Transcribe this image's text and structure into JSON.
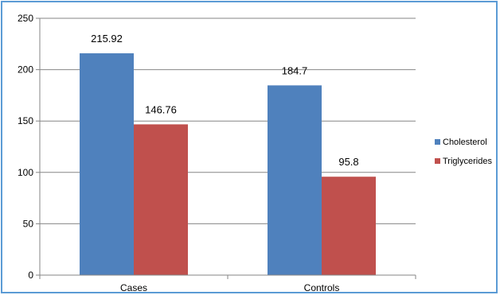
{
  "chart_data": {
    "type": "bar",
    "categories": [
      "Cases",
      "Controls"
    ],
    "series": [
      {
        "name": "Cholesterol",
        "values": [
          215.92,
          184.7
        ],
        "color": "#4f81bd"
      },
      {
        "name": "Triglycerides",
        "values": [
          146.76,
          95.8
        ],
        "color": "#c0504d"
      }
    ],
    "data_labels": [
      [
        "215.92",
        "184.7"
      ],
      [
        "146.76",
        "95.8"
      ]
    ],
    "yticks": [
      "0",
      "50",
      "100",
      "150",
      "200",
      "250"
    ],
    "ylim": [
      0,
      250
    ],
    "grid": true,
    "legend": "right",
    "frame_color": "#5b9bd5",
    "gridline_color": "#868686"
  }
}
